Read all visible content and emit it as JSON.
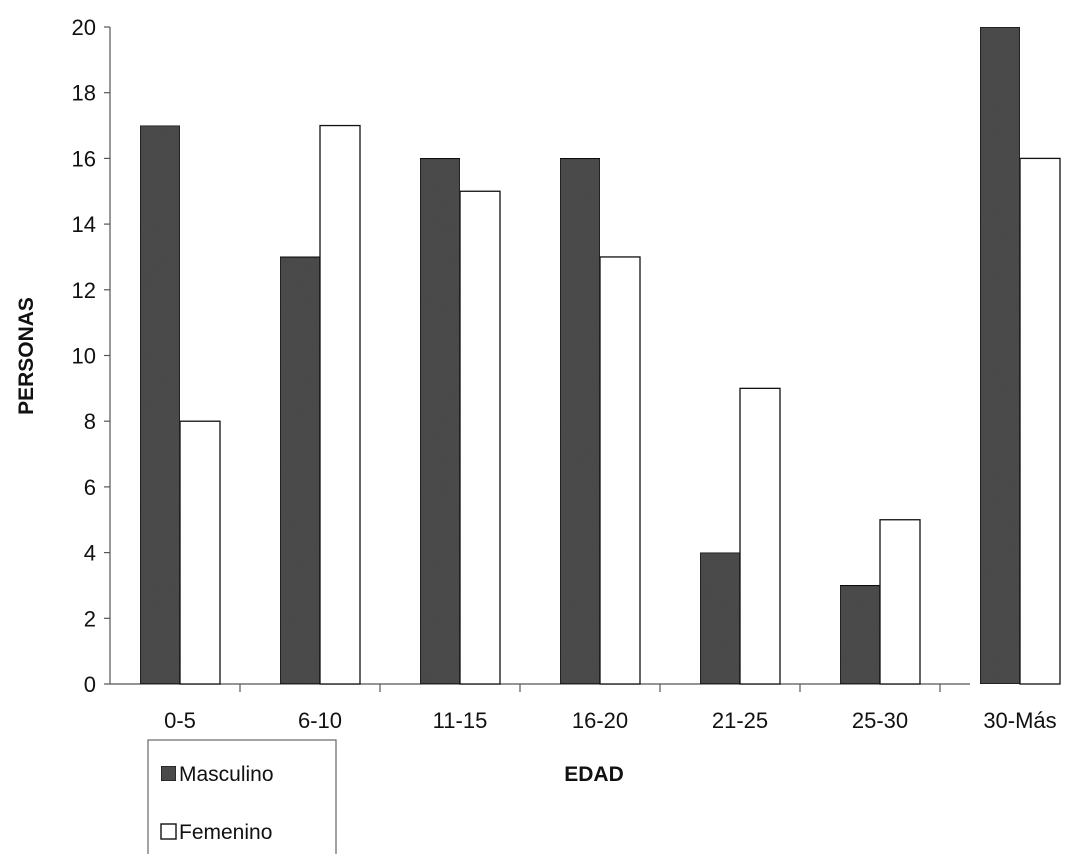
{
  "colors": {
    "masculino": "#4d4d4d",
    "femenino": "#ffffff",
    "bar_stroke": "#111111",
    "axis": "#555555"
  },
  "chart_data": {
    "type": "bar",
    "title": "",
    "xlabel": "EDAD",
    "ylabel": "PERSONAS",
    "categories": [
      "0-5",
      "6-10",
      "11-15",
      "16-20",
      "21-25",
      "25-30",
      "30-Más"
    ],
    "series": [
      {
        "name": "Masculino",
        "values": [
          17,
          13,
          16,
          16,
          4,
          3,
          20
        ]
      },
      {
        "name": "Femenino",
        "values": [
          8,
          17,
          15,
          13,
          9,
          5,
          16
        ]
      }
    ],
    "ylim": [
      0,
      20
    ],
    "yticks": [
      0,
      2,
      4,
      6,
      8,
      10,
      12,
      14,
      16,
      18,
      20
    ],
    "grid": false,
    "legend_position": "bottom-left"
  }
}
